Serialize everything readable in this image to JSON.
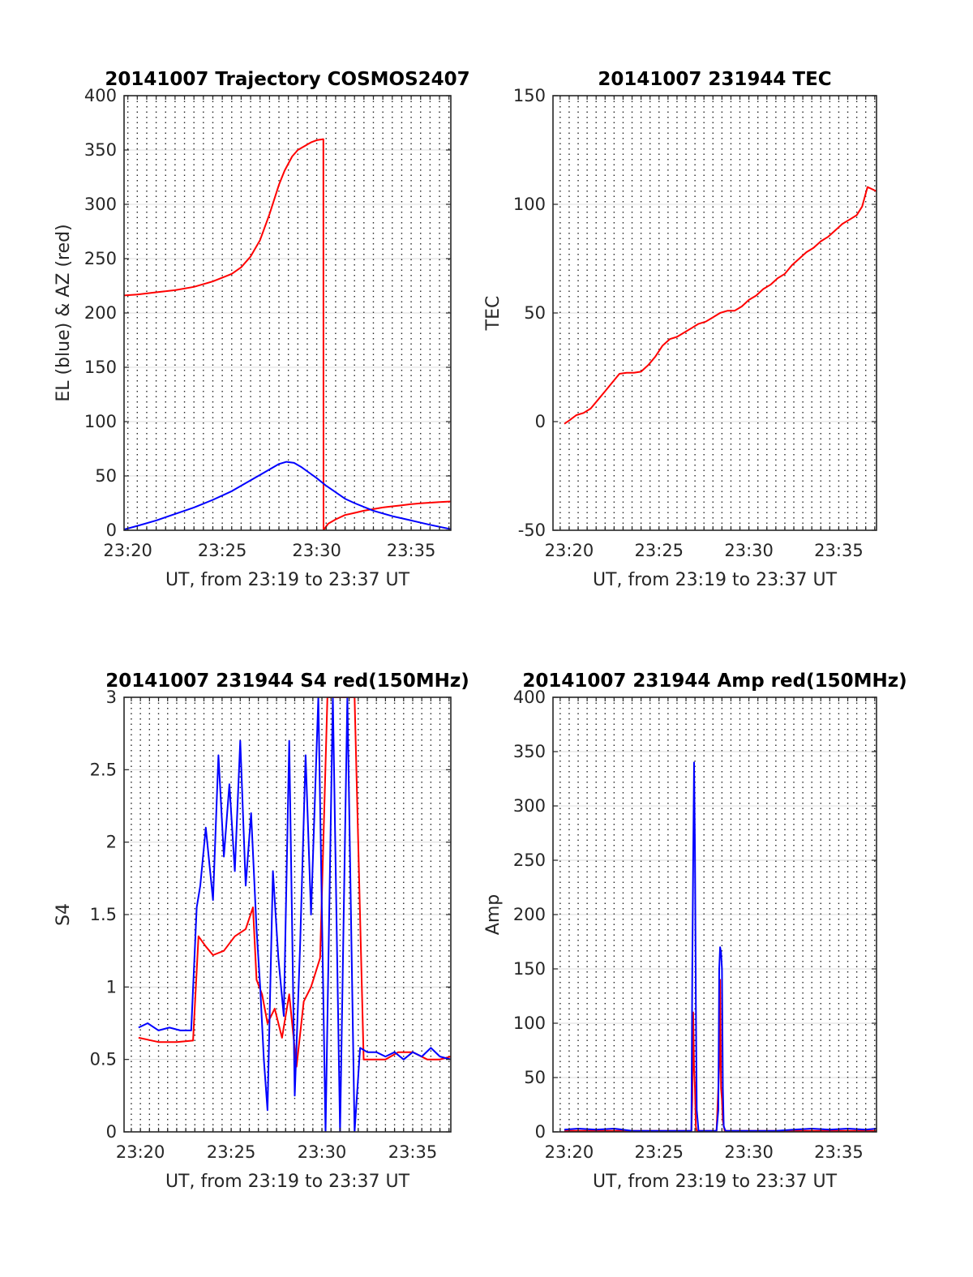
{
  "colors": {
    "red": "#ff0000",
    "blue": "#0000ff",
    "axis": "#262626",
    "grid": "#262626"
  },
  "chart_data": [
    {
      "type": "line",
      "title": "20141007 Trajectory COSMOS2407",
      "xlabel": "UT, from 23:19 to 23:37 UT",
      "ylabel": "EL (blue) & AZ (red)",
      "xlim": [
        19.8,
        37.1
      ],
      "ylim": [
        0,
        400
      ],
      "xticks": [
        20,
        25,
        30,
        35
      ],
      "xtick_labels": [
        "23:20",
        "23:25",
        "23:30",
        "23:35"
      ],
      "yticks": [
        0,
        50,
        100,
        150,
        200,
        250,
        300,
        350,
        400
      ],
      "ytick_labels": [
        "0",
        "50",
        "100",
        "150",
        "200",
        "250",
        "300",
        "350",
        "400"
      ],
      "grid": "dotted vertical every 0.5 min, light horizontal",
      "series": [
        {
          "color": "red",
          "x": [
            19.65,
            20.5,
            21.5,
            22.5,
            23.5,
            24.5,
            25.5,
            26.0,
            26.5,
            27.0,
            27.5,
            28.0,
            28.3,
            28.7,
            29.0,
            29.4,
            29.7,
            30.0,
            30.35,
            30.36,
            30.6,
            31.0,
            31.5,
            32.0,
            32.5,
            33.0,
            33.5,
            34.0,
            34.5,
            35.0,
            35.5,
            36.0,
            36.5,
            37.1
          ],
          "y": [
            216,
            217,
            219,
            221,
            224,
            229,
            236,
            242,
            252,
            267,
            291,
            318,
            331,
            344,
            350,
            354,
            357,
            359,
            360,
            0,
            6,
            10,
            14,
            16,
            18,
            19.5,
            21,
            22,
            23,
            24,
            24.8,
            25.4,
            26,
            26.5
          ]
        },
        {
          "color": "blue",
          "x": [
            19.65,
            20.5,
            21.5,
            22.5,
            23.5,
            24.5,
            25.5,
            26.5,
            27.0,
            27.5,
            28.0,
            28.4,
            28.8,
            29.2,
            29.6,
            30.0,
            30.5,
            31.0,
            31.5,
            32.0,
            33.0,
            34.0,
            35.0,
            36.0,
            37.1
          ],
          "y": [
            0,
            4,
            9,
            15,
            21,
            28,
            36,
            46,
            51,
            56,
            61,
            63,
            62,
            58,
            53,
            48,
            41,
            35,
            29,
            25,
            18,
            13,
            9,
            5,
            1
          ]
        }
      ]
    },
    {
      "type": "line",
      "title": "20141007 231944 TEC",
      "xlabel": "UT, from 23:19 to 23:37 UT",
      "ylabel": "TEC",
      "xlim": [
        19.1,
        37.1
      ],
      "ylim": [
        -50,
        150
      ],
      "xticks": [
        20,
        25,
        30,
        35
      ],
      "xtick_labels": [
        "23:20",
        "23:25",
        "23:30",
        "23:35"
      ],
      "yticks": [
        -50,
        0,
        50,
        100,
        150
      ],
      "ytick_labels": [
        "-50",
        "0",
        "50",
        "100",
        "150"
      ],
      "grid": "dotted vertical every 0.5 min, light horizontal",
      "series": [
        {
          "color": "red",
          "x": [
            19.73,
            20.0,
            20.4,
            20.8,
            21.2,
            21.6,
            22.0,
            22.4,
            22.8,
            23.2,
            23.6,
            24.0,
            24.4,
            24.8,
            25.2,
            25.6,
            26.0,
            26.4,
            26.8,
            27.2,
            27.6,
            28.0,
            28.4,
            28.8,
            29.2,
            29.6,
            30.0,
            30.4,
            30.8,
            31.2,
            31.6,
            32.0,
            32.4,
            32.8,
            33.2,
            33.6,
            34.0,
            34.4,
            34.8,
            35.2,
            35.6,
            36.0,
            36.3,
            36.6,
            37.1
          ],
          "y": [
            -1,
            0.5,
            3,
            4,
            6,
            10,
            14,
            18,
            22,
            22.5,
            22.5,
            23,
            26,
            30,
            35,
            38,
            39,
            41,
            43,
            45,
            46,
            48,
            50,
            51,
            51,
            53,
            56,
            58,
            61,
            63,
            66,
            68,
            72,
            75,
            78,
            80,
            83,
            85,
            88,
            91,
            93,
            95,
            99,
            108,
            106
          ]
        }
      ]
    },
    {
      "type": "line",
      "title": "20141007 231944 S4 red(150MHz)",
      "xlabel": "UT, from 23:19 to 23:37 UT",
      "ylabel": "S4",
      "xlim": [
        19.1,
        37.1
      ],
      "ylim": [
        0,
        3
      ],
      "xticks": [
        20,
        25,
        30,
        35
      ],
      "xtick_labels": [
        "23:20",
        "23:25",
        "23:30",
        "23:35"
      ],
      "yticks": [
        0,
        0.5,
        1,
        1.5,
        2,
        2.5,
        3
      ],
      "ytick_labels": [
        "0",
        "0.5",
        "1",
        "1.5",
        "2",
        "2.5",
        "3"
      ],
      "grid": "dotted vertical every 0.5 min, light horizontal",
      "series": [
        {
          "color": "red",
          "x": [
            19.9,
            21.0,
            22.0,
            22.9,
            23.2,
            23.6,
            24.0,
            24.6,
            25.2,
            25.8,
            26.2,
            26.4,
            26.7,
            27.0,
            27.4,
            27.8,
            28.2,
            28.6,
            29.0,
            29.4,
            29.9,
            30.3,
            30.8,
            31.3,
            31.8,
            32.3,
            32.8,
            33.5,
            34.2,
            35.0,
            35.8,
            36.5,
            37.1
          ],
          "y": [
            0.65,
            0.62,
            0.62,
            0.63,
            1.35,
            1.28,
            1.22,
            1.25,
            1.35,
            1.4,
            1.55,
            1.05,
            0.95,
            0.75,
            0.85,
            0.65,
            0.95,
            0.45,
            0.9,
            1.0,
            1.2,
            3.0,
            3.0,
            3.0,
            3.0,
            0.5,
            0.5,
            0.5,
            0.55,
            0.55,
            0.5,
            0.5,
            0.52
          ]
        },
        {
          "color": "blue",
          "x": [
            19.9,
            20.4,
            21.0,
            21.6,
            22.2,
            22.8,
            23.1,
            23.3,
            23.6,
            24.0,
            24.3,
            24.6,
            24.9,
            25.2,
            25.5,
            25.8,
            26.1,
            26.4,
            26.6,
            26.8,
            27.0,
            27.3,
            27.6,
            27.9,
            28.2,
            28.5,
            28.8,
            29.1,
            29.4,
            29.8,
            30.2,
            30.6,
            31.0,
            31.4,
            31.8,
            32.1,
            32.5,
            33.0,
            33.5,
            34.0,
            34.5,
            35.0,
            35.5,
            36.0,
            36.5,
            37.1
          ],
          "y": [
            0.72,
            0.75,
            0.7,
            0.72,
            0.7,
            0.7,
            1.55,
            1.7,
            2.1,
            1.6,
            2.6,
            1.9,
            2.4,
            1.8,
            2.7,
            1.7,
            2.2,
            1.4,
            1.0,
            0.5,
            0.15,
            1.8,
            1.2,
            0.8,
            2.7,
            0.25,
            1.3,
            2.6,
            1.5,
            3.0,
            0.0,
            3.0,
            0.0,
            3.0,
            0.0,
            0.58,
            0.55,
            0.55,
            0.52,
            0.55,
            0.5,
            0.55,
            0.52,
            0.58,
            0.52,
            0.5
          ]
        }
      ]
    },
    {
      "type": "line",
      "title": "20141007 231944 Amp red(150MHz)",
      "xlabel": "UT, from 23:19 to 23:37 UT",
      "ylabel": "Amp",
      "xlim": [
        19.1,
        37.1
      ],
      "ylim": [
        0,
        400
      ],
      "xticks": [
        20,
        25,
        30,
        35
      ],
      "xtick_labels": [
        "23:20",
        "23:25",
        "23:30",
        "23:35"
      ],
      "yticks": [
        0,
        50,
        100,
        150,
        200,
        250,
        300,
        350,
        400
      ],
      "ytick_labels": [
        "0",
        "50",
        "100",
        "150",
        "200",
        "250",
        "300",
        "350",
        "400"
      ],
      "grid": "dotted vertical every 0.5 min, light horizontal",
      "series": [
        {
          "color": "red",
          "x": [
            19.73,
            26.8,
            26.85,
            26.9,
            26.95,
            27.0,
            27.05,
            27.1,
            28.2,
            28.35,
            28.4,
            28.45,
            28.5,
            28.55,
            28.65,
            37.1
          ],
          "y": [
            1,
            1,
            30,
            110,
            60,
            40,
            5,
            1,
            1,
            60,
            140,
            40,
            30,
            10,
            1,
            1
          ]
        },
        {
          "color": "blue",
          "x": [
            19.73,
            20.5,
            21.5,
            22.5,
            23.5,
            24.5,
            25.5,
            26.5,
            26.8,
            26.85,
            26.9,
            26.95,
            27.0,
            27.05,
            27.1,
            27.2,
            28.2,
            28.3,
            28.35,
            28.4,
            28.45,
            28.5,
            28.55,
            28.6,
            28.7,
            29.5,
            30.5,
            31.5,
            32.5,
            33.5,
            34.5,
            35.5,
            36.5,
            37.1
          ],
          "y": [
            2,
            3,
            2,
            3,
            1,
            1,
            1,
            1,
            1,
            150,
            250,
            340,
            260,
            120,
            20,
            1,
            1,
            20,
            150,
            170,
            165,
            150,
            40,
            5,
            1,
            1,
            1,
            1,
            2,
            3,
            2,
            3,
            2,
            3
          ]
        }
      ]
    }
  ]
}
